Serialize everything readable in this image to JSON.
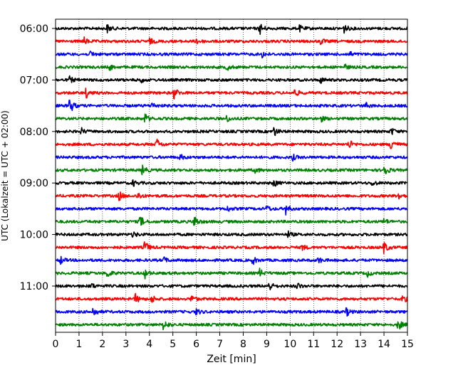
{
  "chart_data": {
    "type": "line",
    "title": "",
    "xlabel": "Zeit  [min]",
    "ylabel": "UTC (Lokalzeit = UTC + 02:00)",
    "xlim": [
      0,
      15
    ],
    "x_ticks": [
      "0",
      "1",
      "2",
      "3",
      "4",
      "5",
      "6",
      "7",
      "8",
      "9",
      "10",
      "11",
      "12",
      "13",
      "14",
      "15"
    ],
    "y_ticks": [
      "06:00",
      "07:00",
      "08:00",
      "09:00",
      "10:00",
      "11:00"
    ],
    "grid": "vertical dotted lines at each minute",
    "trace_colors": [
      "#000000",
      "#ff0000",
      "#0000ff",
      "#008000"
    ],
    "row_interval_min": 15,
    "rows": [
      {
        "start": "06:00",
        "color": "#000000",
        "events": [
          [
            2.2,
            0.4
          ],
          [
            8.7,
            0.6
          ],
          [
            10.4,
            0.3
          ],
          [
            12.3,
            0.4
          ]
        ]
      },
      {
        "start": "06:15",
        "color": "#ff0000",
        "events": [
          [
            1.2,
            0.4
          ],
          [
            4.0,
            0.3
          ],
          [
            6.0,
            0.3
          ],
          [
            11.3,
            0.3
          ]
        ]
      },
      {
        "start": "06:30",
        "color": "#0000ff",
        "events": [
          [
            1.5,
            0.3
          ],
          [
            8.8,
            0.3
          ],
          [
            12.5,
            0.3
          ]
        ]
      },
      {
        "start": "06:45",
        "color": "#008000",
        "events": [
          [
            2.3,
            0.3
          ],
          [
            7.3,
            0.3
          ],
          [
            12.3,
            0.3
          ]
        ]
      },
      {
        "start": "07:00",
        "color": "#000000",
        "events": [
          [
            0.6,
            0.3
          ],
          [
            3.6,
            0.3
          ],
          [
            11.3,
            0.3
          ]
        ]
      },
      {
        "start": "07:15",
        "color": "#ff0000",
        "events": [
          [
            1.3,
            0.5
          ],
          [
            5.05,
            0.6
          ],
          [
            10.2,
            0.4
          ]
        ]
      },
      {
        "start": "07:30",
        "color": "#0000ff",
        "events": [
          [
            0.6,
            0.9
          ],
          [
            4.1,
            0.3
          ],
          [
            13.2,
            0.3
          ]
        ]
      },
      {
        "start": "07:45",
        "color": "#008000",
        "events": [
          [
            3.8,
            0.5
          ],
          [
            7.3,
            0.3
          ],
          [
            11.3,
            0.3
          ]
        ]
      },
      {
        "start": "08:00",
        "color": "#000000",
        "events": [
          [
            1.1,
            0.3
          ],
          [
            9.3,
            0.5
          ],
          [
            14.3,
            0.4
          ]
        ]
      },
      {
        "start": "08:15",
        "color": "#ff0000",
        "events": [
          [
            4.3,
            0.6
          ],
          [
            12.5,
            0.5
          ],
          [
            14.3,
            0.8
          ]
        ]
      },
      {
        "start": "08:30",
        "color": "#0000ff",
        "events": [
          [
            5.3,
            0.3
          ],
          [
            10.1,
            0.3
          ]
        ]
      },
      {
        "start": "08:45",
        "color": "#008000",
        "events": [
          [
            3.7,
            0.5
          ],
          [
            8.5,
            0.3
          ],
          [
            14.0,
            0.7
          ]
        ]
      },
      {
        "start": "09:00",
        "color": "#000000",
        "events": [
          [
            3.3,
            0.3
          ],
          [
            9.3,
            0.4
          ],
          [
            13.5,
            0.3
          ]
        ]
      },
      {
        "start": "09:15",
        "color": "#ff0000",
        "events": [
          [
            2.7,
            0.5
          ],
          [
            3.5,
            0.4
          ],
          [
            14.6,
            0.4
          ]
        ]
      },
      {
        "start": "09:30",
        "color": "#0000ff",
        "events": [
          [
            7.3,
            0.3
          ],
          [
            9.0,
            0.3
          ],
          [
            9.8,
            0.6
          ]
        ]
      },
      {
        "start": "09:45",
        "color": "#008000",
        "events": [
          [
            3.6,
            0.6
          ],
          [
            5.9,
            0.7
          ],
          [
            14.0,
            0.3
          ]
        ]
      },
      {
        "start": "10:00",
        "color": "#000000",
        "events": [
          [
            3.3,
            0.3
          ],
          [
            9.9,
            0.3
          ]
        ]
      },
      {
        "start": "10:15",
        "color": "#ff0000",
        "events": [
          [
            3.8,
            0.7
          ],
          [
            10.5,
            0.3
          ],
          [
            14.0,
            0.6
          ]
        ]
      },
      {
        "start": "10:30",
        "color": "#0000ff",
        "events": [
          [
            0.2,
            0.4
          ],
          [
            4.6,
            0.3
          ],
          [
            8.4,
            0.4
          ],
          [
            11.2,
            0.3
          ]
        ]
      },
      {
        "start": "10:45",
        "color": "#008000",
        "events": [
          [
            2.2,
            0.5
          ],
          [
            3.8,
            0.5
          ],
          [
            8.7,
            0.4
          ],
          [
            13.3,
            0.3
          ]
        ]
      },
      {
        "start": "11:00",
        "color": "#000000",
        "events": [
          [
            1.5,
            0.3
          ],
          [
            9.1,
            0.5
          ],
          [
            10.3,
            0.3
          ]
        ]
      },
      {
        "start": "11:15",
        "color": "#ff0000",
        "events": [
          [
            3.4,
            0.5
          ],
          [
            4.1,
            0.4
          ],
          [
            5.8,
            0.4
          ],
          [
            14.8,
            0.4
          ]
        ]
      },
      {
        "start": "11:30",
        "color": "#0000ff",
        "events": [
          [
            1.6,
            0.5
          ],
          [
            6.0,
            0.3
          ],
          [
            12.4,
            0.4
          ]
        ]
      },
      {
        "start": "11:45",
        "color": "#008000",
        "events": [
          [
            4.6,
            0.6
          ],
          [
            14.6,
            0.6
          ]
        ]
      }
    ]
  }
}
